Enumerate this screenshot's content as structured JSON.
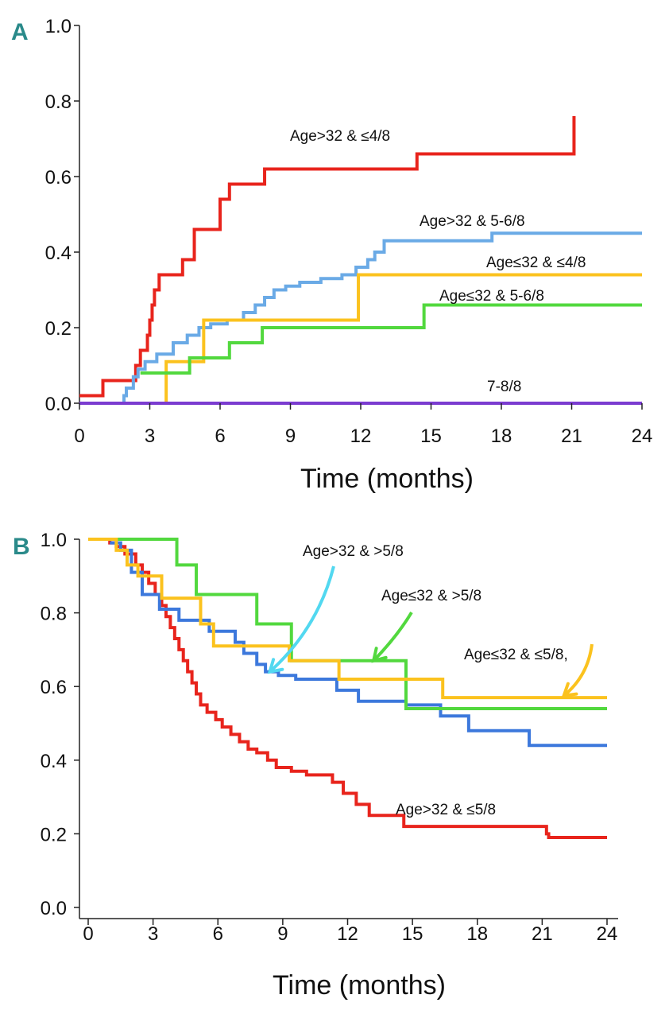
{
  "figure": {
    "panel_letters": [
      "A",
      "B"
    ]
  },
  "colors": {
    "red": "#e8241c",
    "blue_light": "#6aaae6",
    "blue": "#3c78dc",
    "yellow": "#fbc21e",
    "green": "#52d83e",
    "purple": "#7b3cd0",
    "cyan": "#52d8f0"
  },
  "chart_data": [
    {
      "panel": "A",
      "type": "line",
      "step": true,
      "xlabel": "Time (months)",
      "ylabel": "",
      "xlim": [
        0,
        24
      ],
      "ylim": [
        0,
        1
      ],
      "xticks": [
        0,
        3,
        6,
        9,
        12,
        15,
        18,
        21,
        24
      ],
      "yticks": [
        0.0,
        0.2,
        0.4,
        0.6,
        0.8,
        1.0
      ],
      "ytick_labels": [
        "0.0",
        "0.2",
        "0.4",
        "0.6",
        "0.8",
        "1.0"
      ],
      "series": [
        {
          "name": "Age>32 & ≤4/8",
          "color": "#e8241c",
          "x": [
            0,
            1,
            2.4,
            2.6,
            2.9,
            3.0,
            3.1,
            3.2,
            3.4,
            3.6,
            3.8,
            4.4,
            4.9,
            5.4,
            6.0,
            6.4,
            6.6,
            7.2,
            7.9,
            14.4,
            14.5,
            20.8,
            21.1,
            21.1
          ],
          "y": [
            0.02,
            0.06,
            0.1,
            0.14,
            0.18,
            0.22,
            0.26,
            0.3,
            0.34,
            0.34,
            0.34,
            0.38,
            0.46,
            0.46,
            0.54,
            0.58,
            0.58,
            0.58,
            0.62,
            0.66,
            0.66,
            0.66,
            0.66,
            0.76
          ]
        },
        {
          "name": "Age>32 & 5-6/8",
          "color": "#6aaae6",
          "x": [
            1.7,
            1.9,
            2.0,
            2.3,
            2.5,
            2.8,
            3.3,
            4.0,
            4.6,
            5.1,
            5.6,
            6.3,
            7.0,
            7.5,
            7.9,
            8.3,
            8.8,
            9.4,
            10.3,
            11.2,
            11.8,
            12.3,
            12.6,
            13.0,
            15.8,
            17.6,
            24
          ],
          "y": [
            0.0,
            0.02,
            0.04,
            0.07,
            0.09,
            0.11,
            0.13,
            0.16,
            0.18,
            0.2,
            0.21,
            0.22,
            0.24,
            0.26,
            0.28,
            0.3,
            0.31,
            0.32,
            0.33,
            0.34,
            0.36,
            0.38,
            0.4,
            0.43,
            0.43,
            0.45,
            0.45
          ]
        },
        {
          "name": "Age≤32 & ≤4/8",
          "color": "#fbc21e",
          "x": [
            3.6,
            3.7,
            5.3,
            11.9,
            24
          ],
          "y": [
            0.0,
            0.11,
            0.22,
            0.34,
            0.34
          ]
        },
        {
          "name": "Age≤32 & 5-6/8",
          "color": "#52d83e",
          "x": [
            2.6,
            4.7,
            6.4,
            7.8,
            14.7,
            24
          ],
          "y": [
            0.08,
            0.12,
            0.16,
            0.2,
            0.26,
            0.26
          ]
        },
        {
          "name": "7-8/8",
          "color": "#7b3cd0",
          "x": [
            0,
            24
          ],
          "y": [
            0.0,
            0.0
          ]
        }
      ]
    },
    {
      "panel": "B",
      "type": "line",
      "step": true,
      "xlabel": "Time (months)",
      "ylabel": "",
      "xlim": [
        0,
        24
      ],
      "ylim": [
        0,
        1
      ],
      "xticks": [
        0,
        3,
        6,
        9,
        12,
        15,
        18,
        21,
        24
      ],
      "yticks": [
        0.0,
        0.2,
        0.4,
        0.6,
        0.8,
        1.0
      ],
      "ytick_labels": [
        "0.0",
        "0.2",
        "0.4",
        "0.6",
        "0.8",
        "1.0"
      ],
      "series": [
        {
          "name": "Age>32 & ≤5/8",
          "color": "#e8241c",
          "x": [
            0,
            1.0,
            1.3,
            1.7,
            2.2,
            2.5,
            2.8,
            3.1,
            3.4,
            3.6,
            3.8,
            4.0,
            4.2,
            4.4,
            4.6,
            4.8,
            5.0,
            5.2,
            5.5,
            5.9,
            6.2,
            6.6,
            7.0,
            7.4,
            7.8,
            8.3,
            8.7,
            9.4,
            10.1,
            11.3,
            11.8,
            12.4,
            13.0,
            14.6,
            18.0,
            21.2,
            21.3,
            24
          ],
          "y": [
            1.0,
            0.99,
            0.98,
            0.96,
            0.93,
            0.91,
            0.88,
            0.85,
            0.82,
            0.79,
            0.76,
            0.73,
            0.7,
            0.67,
            0.64,
            0.61,
            0.58,
            0.55,
            0.53,
            0.51,
            0.49,
            0.47,
            0.45,
            0.43,
            0.42,
            0.4,
            0.38,
            0.37,
            0.36,
            0.34,
            0.31,
            0.28,
            0.25,
            0.22,
            0.22,
            0.2,
            0.19,
            0.19
          ]
        },
        {
          "name": "Age>32 & >5/8",
          "color": "#3c78dc",
          "x": [
            1.0,
            1.5,
            2.0,
            2.5,
            3.3,
            4.2,
            5.6,
            6.8,
            7.2,
            7.8,
            8.2,
            8.8,
            9.6,
            11.5,
            12.5,
            14.7,
            16.3,
            17.6,
            20.4,
            24
          ],
          "y": [
            0.99,
            0.97,
            0.91,
            0.85,
            0.81,
            0.78,
            0.75,
            0.72,
            0.69,
            0.66,
            0.64,
            0.63,
            0.62,
            0.59,
            0.56,
            0.55,
            0.52,
            0.48,
            0.44,
            0.44
          ]
        },
        {
          "name": "Age≤32 & >5/8",
          "color": "#52d83e",
          "x": [
            0,
            4.1,
            5.0,
            7.8,
            9.4,
            14.7,
            24
          ],
          "y": [
            1.0,
            0.93,
            0.85,
            0.77,
            0.67,
            0.54,
            0.54
          ]
        },
        {
          "name": "Age≤32 & ≤5/8,",
          "color": "#fbc21e",
          "x": [
            0,
            1.3,
            1.8,
            2.3,
            3.4,
            5.2,
            5.8,
            6.6,
            9.3,
            11.6,
            16.4,
            24
          ],
          "y": [
            1.0,
            0.97,
            0.93,
            0.9,
            0.84,
            0.77,
            0.71,
            0.71,
            0.67,
            0.62,
            0.57,
            0.57
          ]
        }
      ],
      "annotations": [
        {
          "text": "Age>32 & >5/8",
          "color": "#52d8f0",
          "arrow_to": {
            "x": 8.4,
            "y": 0.64
          }
        },
        {
          "text": "Age≤32 & >5/8",
          "color": "#52d83e",
          "arrow_to": {
            "x": 13.2,
            "y": 0.67
          }
        },
        {
          "text": "Age≤32 & ≤5/8,",
          "color": "#fbc21e",
          "arrow_to": {
            "x": 22.0,
            "y": 0.575
          }
        },
        {
          "text": "Age>32 & ≤5/8",
          "color": null,
          "arrow_to": null
        }
      ]
    }
  ]
}
